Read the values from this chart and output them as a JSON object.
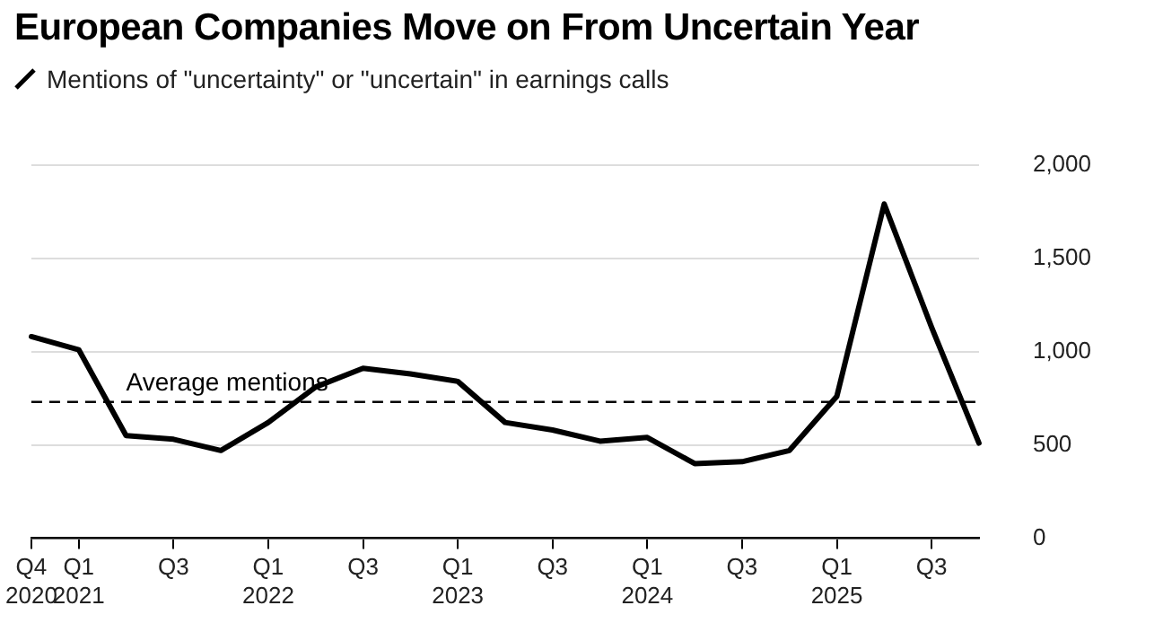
{
  "chart_data": {
    "type": "line",
    "title": "European Companies Move on From Uncertain Year",
    "subtitle": "Mentions of \"uncertainty\" or \"uncertain\" in earnings calls",
    "categories": [
      "Q4 2020",
      "Q1 2021",
      null,
      "Q3",
      null,
      "Q1 2022",
      null,
      "Q3",
      null,
      "Q1 2023",
      null,
      "Q3",
      null,
      "Q1 2024",
      null,
      "Q3",
      null,
      "Q1 2025",
      null,
      "Q3",
      null
    ],
    "series": [
      {
        "color": "#000000",
        "values": [
          1080,
          1010,
          550,
          530,
          470,
          620,
          810,
          910,
          880,
          840,
          620,
          580,
          520,
          540,
          400,
          410,
          470,
          760,
          1790,
          1130,
          510
        ]
      }
    ],
    "ylim": [
      0,
      2000
    ],
    "yticks": [
      0,
      500,
      {
        "value": 1000,
        "label": "1,000"
      },
      {
        "value": 1500,
        "label": "1,500"
      },
      {
        "value": 2000,
        "label": "2,000"
      }
    ],
    "grid": "y",
    "legend": false,
    "marker": "none",
    "line_style": "solid",
    "ref_lines": [
      {
        "axis": "y",
        "value": 730,
        "label": "Average mentions",
        "line_style": "dashed",
        "color": "#000000"
      }
    ]
  }
}
